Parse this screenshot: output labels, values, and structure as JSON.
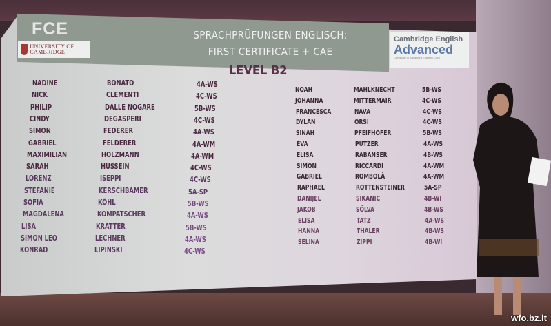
{
  "header": {
    "fce_logo": "FCE",
    "university_logo": "UNIVERSITY OF CAMBRIDGE",
    "title_line1": "SPRACHPRÜFUNGEN ENGLISCH:",
    "title_line2": "FIRST CERTIFICATE + CAE",
    "cae_logo": {
      "line1": "Cambridge English",
      "line2": "Advanced",
      "line3": "Certificate in Advanced English (CAE)"
    }
  },
  "level": "LEVEL B2",
  "left_list": [
    [
      "NADINE",
      "BONATO",
      "4A-WS"
    ],
    [
      "NICK",
      "CLEMENTI",
      "4C-WS"
    ],
    [
      "PHILIP",
      "DALLE NOGARE",
      "5B-WS"
    ],
    [
      "CINDY",
      "DEGASPERI",
      "4C-WS"
    ],
    [
      "SIMON",
      "FEDERER",
      "4A-WS"
    ],
    [
      "GABRIEL",
      "FELDERER",
      "4A-WM"
    ],
    [
      "MAXIMILIAN",
      "HOLZMANN",
      "4A-WM"
    ],
    [
      "SARAH",
      "HUSSEIN",
      "4C-WS"
    ],
    [
      "LORENZ",
      "ISEPPI",
      "4C-WS"
    ],
    [
      "STEFANIE",
      "KERSCHBAMER",
      "5A-SP"
    ],
    [
      "SOFIA",
      "KÖHL",
      "5B-WS"
    ],
    [
      "MAGDALENA",
      "KOMPATSCHER",
      "4A-WS"
    ],
    [
      "LISA",
      "KRATTER",
      "5B-WS"
    ],
    [
      "SIMON LEO",
      "LECHNER",
      "4A-WS"
    ],
    [
      "KONRAD",
      "LIPINSKI",
      "4C-WS"
    ]
  ],
  "right_list": [
    [
      "NOAH",
      "MAHLKNECHT",
      "5B-WS"
    ],
    [
      "JOHANNA",
      "MITTERMAIR",
      "4C-WS"
    ],
    [
      "FRANCESCA",
      "NAVA",
      "4C-WS"
    ],
    [
      "DYLAN",
      "ORSI",
      "4C-WS"
    ],
    [
      "SINAH",
      "PFEIFHOFER",
      "5B-WS"
    ],
    [
      "EVA",
      "PUTZER",
      "4A-WS"
    ],
    [
      "ELISA",
      "RABANSER",
      "4B-WS"
    ],
    [
      "SIMON",
      "RICCARDI",
      "4A-WM"
    ],
    [
      "GABRIEL",
      "ROMBOLÀ",
      "4A-WM"
    ],
    [
      "RAPHAEL",
      "ROTTENSTEINER",
      "5A-SP"
    ],
    [
      "DANIJEL",
      "SIKANIC",
      "4B-WI"
    ],
    [
      "JAKOB",
      "SÖLVA",
      "4B-WS"
    ],
    [
      "ELISA",
      "TATZ",
      "4A-WS"
    ],
    [
      "HANNA",
      "THALER",
      "4B-WS"
    ],
    [
      "SELINA",
      "ZIPPI",
      "4B-WI"
    ]
  ],
  "watermark": "wfo.bz.it"
}
